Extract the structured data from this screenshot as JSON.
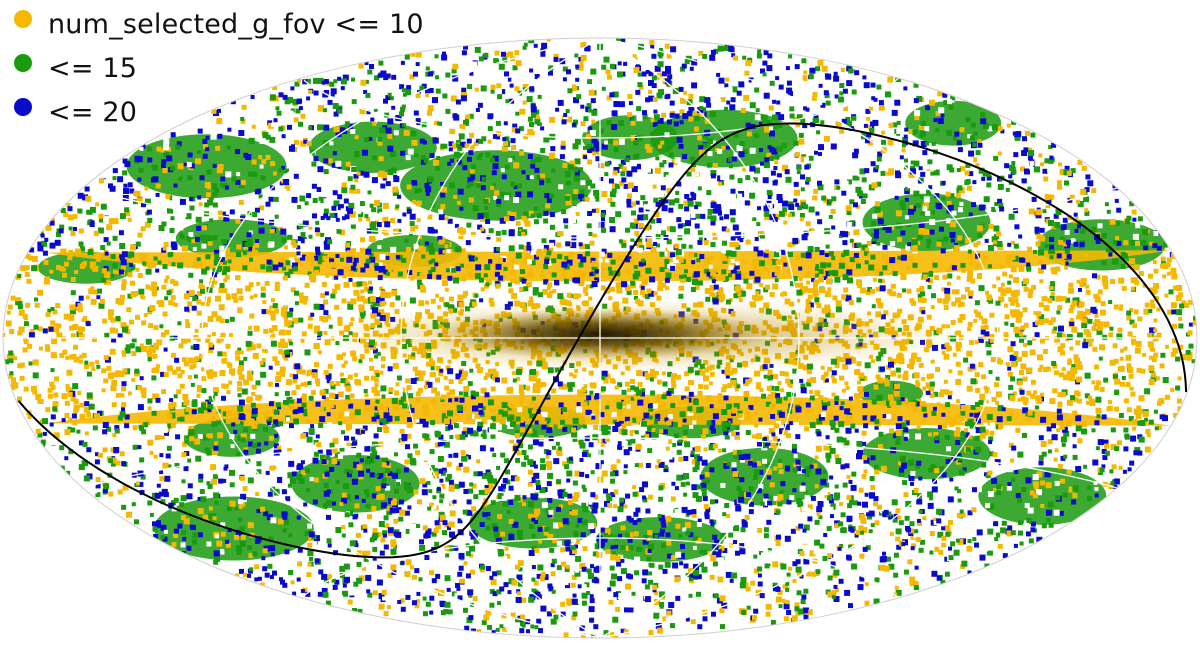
{
  "chart_data": {
    "type": "scatter",
    "projection": "aitoff",
    "frame": "galactic",
    "title": "",
    "xlabel": "",
    "ylabel": "",
    "xlim": [
      -180,
      180
    ],
    "ylim": [
      -90,
      90
    ],
    "grid": true,
    "legend_position": "top-left",
    "background_density": "dark density concentrated along the galactic plane (b = 0), strongest near l = 0",
    "series": [
      {
        "name": "num_selected_g_fov <= 10",
        "color": "#f5b800"
      },
      {
        "name": "<= 15",
        "color": "#1a9a0f"
      },
      {
        "name": "<= 20",
        "color": "#0a0acc"
      }
    ],
    "regions": [
      {
        "series": "<= 15",
        "description": "dense patches at high |b|, and a band crossing the southern sky"
      },
      {
        "series": "num_selected_g_fov <= 10",
        "description": "dense along the galactic plane, |b| below about 20 deg"
      },
      {
        "series": "<= 20",
        "description": "scattered edges around the <= 15 patches"
      }
    ],
    "overlay": {
      "type": "curve",
      "description": "ecliptic",
      "color": "#000000"
    }
  },
  "legend": {
    "items": [
      {
        "label": "num_selected_g_fov <= 10",
        "color": "#f5b800"
      },
      {
        "label": "<= 15",
        "color": "#1a9a0f"
      },
      {
        "label": "<= 20",
        "color": "#0a0acc"
      }
    ]
  }
}
